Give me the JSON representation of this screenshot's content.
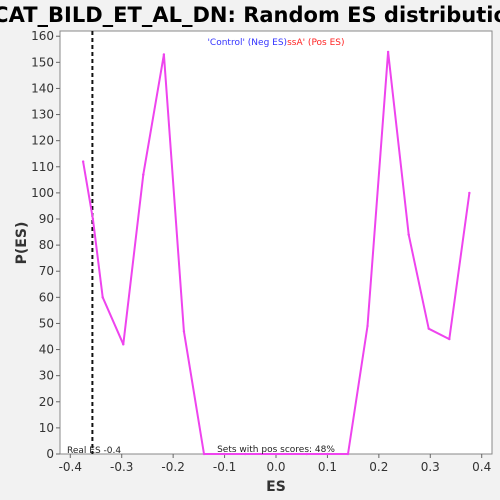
{
  "chart_data": {
    "type": "line",
    "title": "BCAT_BILD_ET_AL_DN: Random ES distribution",
    "xlabel": "ES",
    "ylabel": "P(ES)",
    "xlim": [
      -0.42,
      0.42
    ],
    "ylim": [
      0,
      162
    ],
    "xticks": [
      -0.4,
      -0.3,
      -0.2,
      -0.1,
      0.0,
      0.1,
      0.2,
      0.3,
      0.4
    ],
    "yticks": [
      0,
      10,
      20,
      30,
      40,
      50,
      60,
      70,
      80,
      90,
      100,
      110,
      120,
      130,
      140,
      150,
      160
    ],
    "grid": false,
    "legend": {
      "placement": "top-center",
      "entries": [
        {
          "label": "'Control' (Neg ES)",
          "color": "#3333ff"
        },
        {
          "label": "ssA' (Pos ES)",
          "color": "#ff2222"
        }
      ]
    },
    "series": [
      {
        "color": "#ee44ee",
        "x": [
          -0.375,
          -0.356,
          -0.337,
          -0.297,
          -0.258,
          -0.218,
          -0.179,
          -0.14,
          -0.1,
          -0.06,
          0.06,
          0.1,
          0.14,
          0.178,
          0.218,
          0.258,
          0.297,
          0.337,
          0.376
        ],
        "y": [
          112,
          90,
          60,
          42,
          107,
          153,
          47,
          0,
          0,
          0,
          0,
          0,
          0,
          49,
          154,
          84,
          48,
          44,
          100
        ]
      }
    ],
    "reference_line": {
      "x": -0.357,
      "label": "Real ES -0.4"
    },
    "annotations": {
      "pos_scores": "Sets with pos scores: 48%"
    }
  }
}
